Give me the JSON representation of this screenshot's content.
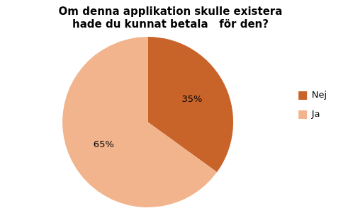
{
  "chart_data": {
    "type": "pie",
    "title": "Om denna applikation skulle existera\nhade du kunnat betala   för den?",
    "categories": [
      "Nej",
      "Ja"
    ],
    "values": [
      35,
      65
    ],
    "value_labels": [
      "35%",
      "65%"
    ],
    "colors": [
      "#C8642A",
      "#F2B48C"
    ],
    "data_labels": true,
    "legend": "right"
  }
}
